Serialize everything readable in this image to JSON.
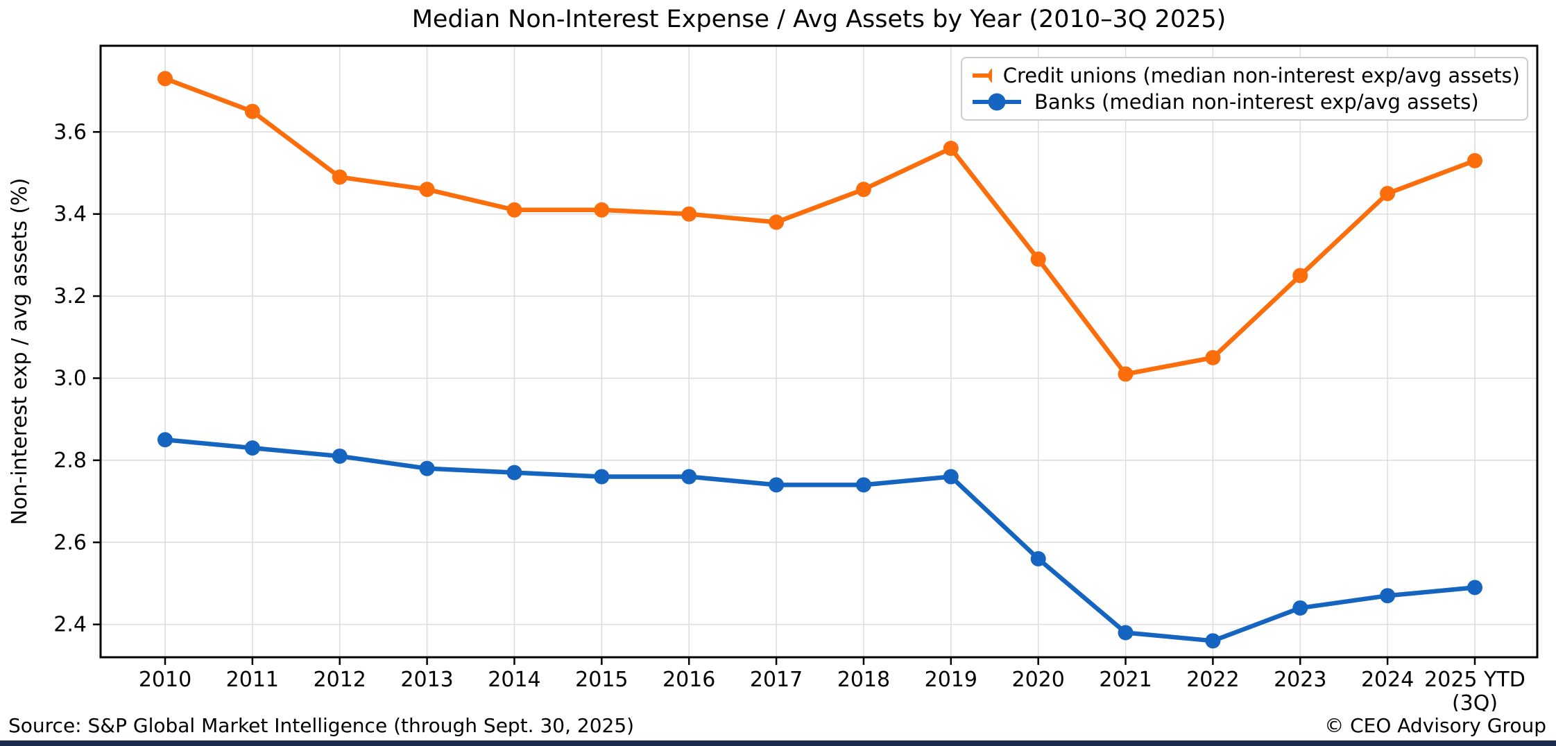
{
  "title": "Median Non-Interest Expense / Avg Assets by Year (2010–3Q 2025)",
  "footer": {
    "source": "Source: S&P Global Market Intelligence (through Sept. 30, 2025)",
    "copyright": "© CEO Advisory Group"
  },
  "colors": {
    "background": "#FFFFFF",
    "grid": "#DCDCDC",
    "axis": "#000000",
    "legend_border": "#CCCCCC",
    "footer_bar": "#1B2A4D"
  },
  "chart_data": {
    "type": "line",
    "title": "Median Non-Interest Expense / Avg Assets by Year (2010–3Q 2025)",
    "xlabel": "",
    "ylabel": "Non-interest exp / avg assets (%)",
    "categories": [
      "2010",
      "2011",
      "2012",
      "2013",
      "2014",
      "2015",
      "2016",
      "2017",
      "2018",
      "2019",
      "2020",
      "2021",
      "2022",
      "2023",
      "2024",
      "2025 YTD\n(3Q)"
    ],
    "yticks": [
      2.4,
      2.6,
      2.8,
      3.0,
      3.2,
      3.4,
      3.6
    ],
    "ylim": [
      2.32,
      3.81
    ],
    "grid": true,
    "legend_position": "upper right",
    "series": [
      {
        "name": "Credit unions (median non-interest exp/avg assets)",
        "color": "#FB6E0B",
        "values": [
          3.73,
          3.65,
          3.49,
          3.46,
          3.41,
          3.41,
          3.4,
          3.38,
          3.46,
          3.56,
          3.29,
          3.01,
          3.05,
          3.25,
          3.45,
          3.53
        ]
      },
      {
        "name": "Banks (median non-interest exp/avg assets)",
        "color": "#1565C0",
        "values": [
          2.85,
          2.83,
          2.81,
          2.78,
          2.77,
          2.76,
          2.76,
          2.74,
          2.74,
          2.76,
          2.56,
          2.38,
          2.36,
          2.44,
          2.47,
          2.49
        ]
      }
    ]
  }
}
